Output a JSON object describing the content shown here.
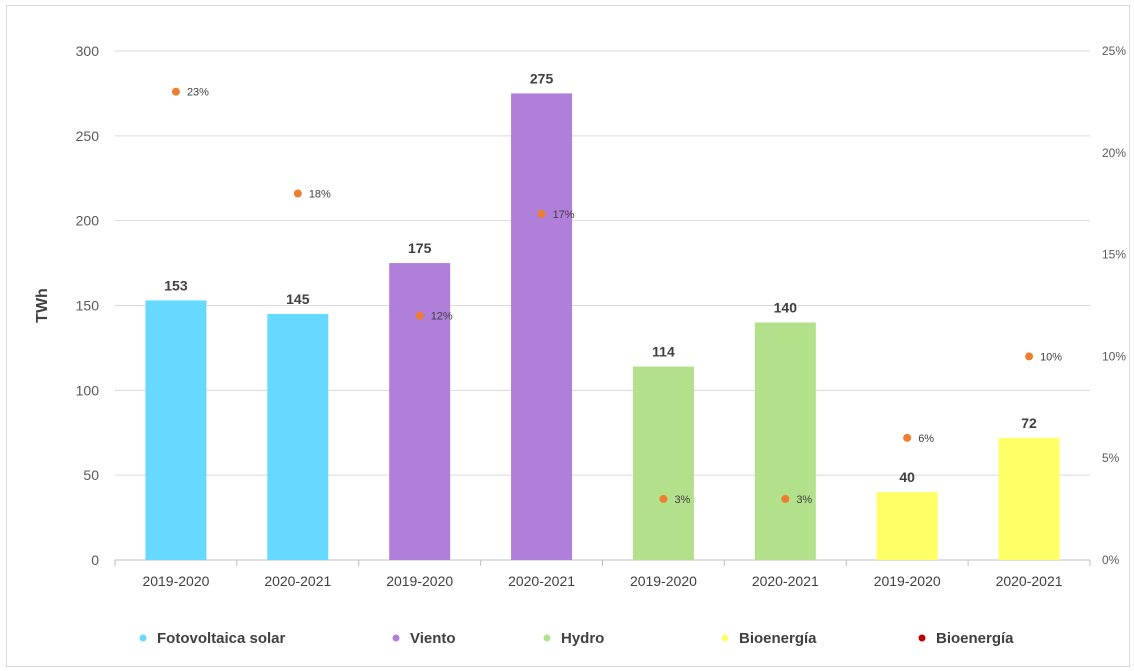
{
  "chart_data": {
    "type": "bar",
    "ylabel": "TWh",
    "ylim": [
      0,
      300
    ],
    "yticks": [
      "0",
      "50",
      "100",
      "150",
      "200",
      "250",
      "300"
    ],
    "y2lim": [
      0,
      25
    ],
    "y2ticks": [
      "0%",
      "5%",
      "10%",
      "15%",
      "20%",
      "25%"
    ],
    "grid": true,
    "legend_position": "bottom",
    "categories": [
      "2019-2020",
      "2020-2021",
      "2019-2020",
      "2020-2021",
      "2019-2020",
      "2020-2021",
      "2019-2020",
      "2020-2021"
    ],
    "bars": [
      {
        "value": 153,
        "label": "153",
        "color": "#66d9ff"
      },
      {
        "value": 145,
        "label": "145",
        "color": "#66d9ff"
      },
      {
        "value": 175,
        "label": "175",
        "color": "#b07fd9"
      },
      {
        "value": 275,
        "label": "275",
        "color": "#b07fd9"
      },
      {
        "value": 114,
        "label": "114",
        "color": "#b3e08a"
      },
      {
        "value": 140,
        "label": "140",
        "color": "#b3e08a"
      },
      {
        "value": 40,
        "label": "40",
        "color": "#ffff66"
      },
      {
        "value": 72,
        "label": "72",
        "color": "#ffff66"
      }
    ],
    "points": [
      {
        "value": 23,
        "label": "23%"
      },
      {
        "value": 18,
        "label": "18%"
      },
      {
        "value": 12,
        "label": "12%"
      },
      {
        "value": 17,
        "label": "17%"
      },
      {
        "value": 3,
        "label": "3%"
      },
      {
        "value": 3,
        "label": "3%"
      },
      {
        "value": 6,
        "label": "6%"
      },
      {
        "value": 10,
        "label": "10%"
      }
    ],
    "point_color": "#ed7d31",
    "legend": [
      {
        "label": "Fotovoltaica solar",
        "color": "#66d9ff"
      },
      {
        "label": "Viento",
        "color": "#b07fd9"
      },
      {
        "label": "Hydro",
        "color": "#b3e08a"
      },
      {
        "label": "Bioenergía",
        "color": "#ffff66"
      },
      {
        "label": "Bioenergía",
        "color": "#c00000"
      }
    ]
  }
}
